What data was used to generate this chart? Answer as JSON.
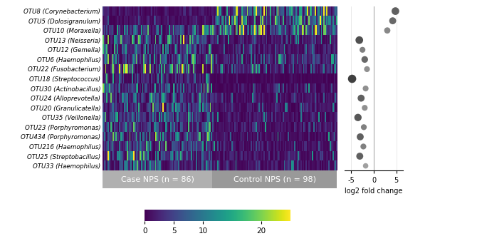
{
  "otus": [
    "OTU8 (Corynebacterium)",
    "OTU5 (Dolosigranulum)",
    "OTU10 (Moraxella)",
    "OTU13 (Neisseria)",
    "OTU12 (Gemella)",
    "OTU6 (Haemophilus)",
    "OTU22 (Fusobacterium)",
    "OTU18 (Streptococcus)",
    "OTU30 (Actinobacillus)",
    "OTU24 (Alloprevotella)",
    "OTU20 (Granulicatella)",
    "OTU35 (Veillonella)",
    "OTU23 (Porphyromonas)",
    "OTU434 (Porphyromonas)",
    "OTU216 (Haemophilus)",
    "OTU25 (Streptobacillus)",
    "OTU33 (Haemophilus)"
  ],
  "n_cases": 86,
  "n_controls": 98,
  "log2fc": [
    4.8,
    4.2,
    3.0,
    -3.2,
    -2.5,
    -2.0,
    -1.5,
    -4.8,
    -1.8,
    -2.8,
    -2.0,
    -3.5,
    -2.2,
    -3.0,
    -2.3,
    -3.1,
    -1.8
  ],
  "dot_sizes": [
    60,
    50,
    40,
    60,
    35,
    45,
    35,
    70,
    35,
    50,
    35,
    55,
    35,
    50,
    35,
    50,
    30
  ],
  "dot_colors": [
    "#606060",
    "#686868",
    "#888888",
    "#505050",
    "#808080",
    "#686868",
    "#909090",
    "#404040",
    "#909090",
    "#606060",
    "#909090",
    "#585858",
    "#808080",
    "#606060",
    "#808080",
    "#606060",
    "#a0a0a0"
  ],
  "colorbar_min": 0,
  "colorbar_max": 25,
  "colorbar_ticks": [
    0,
    5,
    10,
    20
  ],
  "case_label": "Case NPS (n = 86)",
  "control_label": "Control NPS (n = 98)",
  "xlabel_scatter": "log2 fold change",
  "scatter_xlim": [
    -6.5,
    6.5
  ],
  "scatter_xticks": [
    -5,
    0,
    5
  ],
  "background_color": "#ffffff",
  "label_bg_case": "#b0b0b0",
  "label_bg_control": "#999999"
}
